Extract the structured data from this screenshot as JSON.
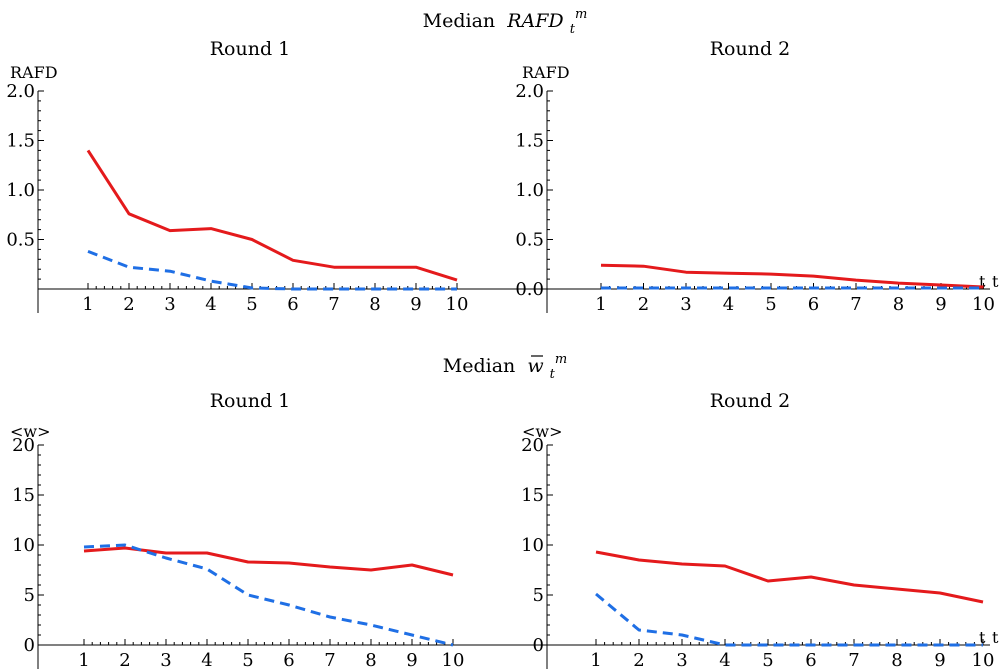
{
  "sections": [
    {
      "title_prefix": "Median",
      "title_math": "RAFD",
      "title_sub": "t",
      "title_sup": "m",
      "overline": false
    },
    {
      "title_prefix": "Median",
      "title_math": "w",
      "title_sub": "t",
      "title_sup": "m",
      "overline": true
    }
  ],
  "chart_data": [
    {
      "type": "line",
      "title": "Round 1",
      "ylabel": "RAFD",
      "xlabel": "t",
      "x": [
        1,
        2,
        3,
        4,
        5,
        6,
        7,
        8,
        9,
        10
      ],
      "ylim": [
        0,
        2.0
      ],
      "yticks": [
        0.5,
        1.0,
        1.5,
        2.0
      ],
      "ytick_labels": [
        "0.5",
        "1.0",
        "1.5",
        "2.0"
      ],
      "x_ticks": [
        1,
        2,
        3,
        4,
        5,
        6,
        7,
        8,
        9,
        10
      ],
      "series": [
        {
          "color": "#e41a1c",
          "dash": "solid",
          "values": [
            1.4,
            0.76,
            0.59,
            0.61,
            0.5,
            0.29,
            0.22,
            0.22,
            0.22,
            0.09
          ]
        },
        {
          "color": "#1f6fe5",
          "dash": "dashed",
          "values": [
            0.38,
            0.22,
            0.18,
            0.08,
            0.01,
            0.0,
            0.0,
            0.0,
            0.0,
            0.0
          ]
        }
      ]
    },
    {
      "type": "line",
      "title": "Round 2",
      "ylabel": "RAFD",
      "xlabel": "t",
      "x": [
        1,
        2,
        3,
        4,
        5,
        6,
        7,
        8,
        9,
        10
      ],
      "ylim": [
        0,
        2.0
      ],
      "yticks": [
        0.0,
        0.5,
        1.0,
        1.5,
        2.0
      ],
      "ytick_labels": [
        "0.0",
        "0.5",
        "1.0",
        "1.5",
        "2.0"
      ],
      "x_ticks": [
        1,
        2,
        3,
        4,
        5,
        6,
        7,
        8,
        9,
        10
      ],
      "series": [
        {
          "color": "#e41a1c",
          "dash": "solid",
          "values": [
            0.24,
            0.23,
            0.17,
            0.16,
            0.15,
            0.13,
            0.09,
            0.06,
            0.04,
            0.02
          ]
        },
        {
          "color": "#1f6fe5",
          "dash": "dashed",
          "values": [
            0.01,
            0.01,
            0.01,
            0.01,
            0.01,
            0.01,
            0.01,
            0.01,
            0.01,
            0.01
          ]
        }
      ]
    },
    {
      "type": "line",
      "title": "Round 1",
      "ylabel": "<w>",
      "xlabel": "t",
      "x": [
        1,
        2,
        3,
        4,
        5,
        6,
        7,
        8,
        9,
        10
      ],
      "ylim": [
        0,
        20
      ],
      "yticks": [
        0,
        5,
        10,
        15,
        20
      ],
      "ytick_labels": [
        "0",
        "5",
        "10",
        "15",
        "20"
      ],
      "x_ticks": [
        1,
        2,
        3,
        4,
        5,
        6,
        7,
        8,
        9,
        10
      ],
      "series": [
        {
          "color": "#e41a1c",
          "dash": "solid",
          "values": [
            9.4,
            9.7,
            9.2,
            9.2,
            8.3,
            8.2,
            7.8,
            7.5,
            8.0,
            7.0
          ]
        },
        {
          "color": "#1f6fe5",
          "dash": "dashed",
          "values": [
            9.8,
            10.0,
            8.7,
            7.6,
            5.0,
            4.0,
            2.8,
            2.0,
            1.0,
            0.0
          ]
        }
      ]
    },
    {
      "type": "line",
      "title": "Round 2",
      "ylabel": "<w>",
      "xlabel": "t",
      "x": [
        1,
        2,
        3,
        4,
        5,
        6,
        7,
        8,
        9,
        10
      ],
      "ylim": [
        0,
        20
      ],
      "yticks": [
        0,
        5,
        10,
        15,
        20
      ],
      "ytick_labels": [
        "0",
        "5",
        "10",
        "15",
        "20"
      ],
      "x_ticks": [
        1,
        2,
        3,
        4,
        5,
        6,
        7,
        8,
        9,
        10
      ],
      "series": [
        {
          "color": "#e41a1c",
          "dash": "solid",
          "values": [
            9.3,
            8.5,
            8.1,
            7.9,
            6.4,
            6.8,
            6.0,
            5.6,
            5.2,
            4.3
          ]
        },
        {
          "color": "#1f6fe5",
          "dash": "dashed",
          "values": [
            5.1,
            1.5,
            1.0,
            0.0,
            0.0,
            0.0,
            0.0,
            0.0,
            0.0,
            0.0
          ]
        }
      ]
    }
  ]
}
